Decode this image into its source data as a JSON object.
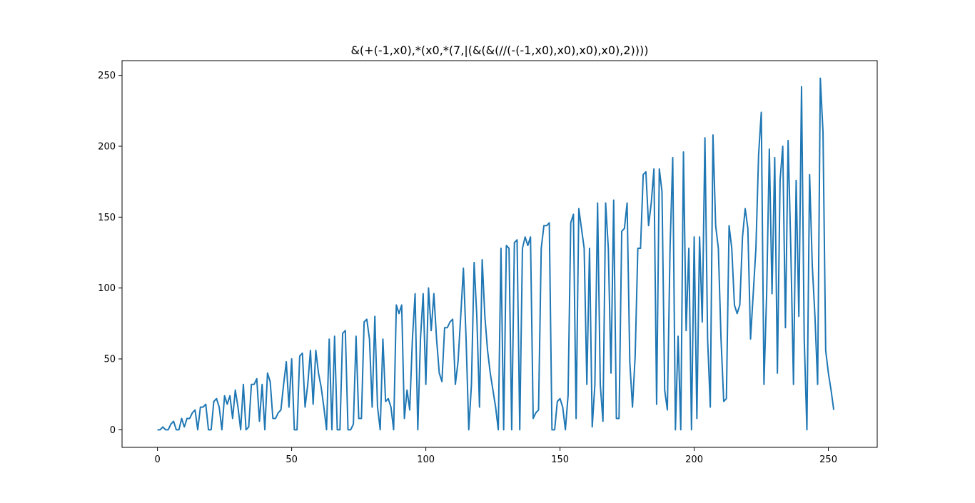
{
  "chart_data": {
    "type": "line",
    "title": "&(+(-1,x0),*(x0,*(7,|(&(&(//(-(-1,x0),x0),x0),x0),2))))",
    "xlabel": "",
    "ylabel": "",
    "xlim": [
      -13.2,
      268.2
    ],
    "ylim": [
      -12.4,
      260.4
    ],
    "xticks": [
      0,
      50,
      100,
      150,
      200,
      250
    ],
    "yticks": [
      0,
      50,
      100,
      150,
      200,
      250
    ],
    "grid": false,
    "line_color": "#1f77b4",
    "series": [
      {
        "x_start": 0,
        "values": [
          0,
          0,
          2,
          0,
          0,
          4,
          6,
          0,
          0,
          8,
          2,
          8,
          8,
          12,
          14,
          0,
          16,
          16,
          18,
          0,
          0,
          20,
          22,
          16,
          0,
          24,
          18,
          24,
          8,
          28,
          16,
          0,
          32,
          0,
          2,
          32,
          32,
          36,
          6,
          32,
          0,
          40,
          34,
          8,
          8,
          12,
          14,
          32,
          48,
          16,
          50,
          0,
          0,
          52,
          54,
          16,
          32,
          56,
          18,
          56,
          40,
          30,
          16,
          0,
          64,
          0,
          66,
          0,
          0,
          68,
          70,
          0,
          0,
          4,
          66,
          8,
          8,
          76,
          78,
          64,
          16,
          80,
          16,
          0,
          64,
          20,
          22,
          16,
          0,
          88,
          82,
          88,
          8,
          28,
          14,
          64,
          96,
          0,
          64,
          96,
          32,
          100,
          70,
          96,
          64,
          40,
          34,
          72,
          72,
          76,
          78,
          32,
          48,
          80,
          114,
          64,
          0,
          32,
          118,
          80,
          16,
          120,
          80,
          56,
          40,
          28,
          16,
          0,
          128,
          0,
          130,
          128,
          0,
          132,
          134,
          0,
          128,
          136,
          130,
          136,
          8,
          12,
          14,
          128,
          144,
          144,
          146,
          0,
          0,
          20,
          22,
          16,
          0,
          24,
          146,
          152,
          8,
          156,
          142,
          128,
          32,
          128,
          2,
          32,
          160,
          32,
          6,
          160,
          128,
          40,
          162,
          8,
          8,
          140,
          142,
          160,
          48,
          16,
          52,
          128,
          128,
          180,
          182,
          144,
          160,
          184,
          18,
          184,
          168,
          28,
          14,
          128,
          192,
          0,
          66,
          0,
          196,
          70,
          128,
          0,
          136,
          8,
          136,
          76,
          206,
          64,
          16,
          208,
          144,
          128,
          64,
          20,
          22,
          144,
          128,
          88,
          82,
          88,
          136,
          156,
          142,
          64,
          96,
          128,
          194,
          224,
          32,
          96,
          198,
          96,
          192,
          40,
          176,
          200,
          72,
          204,
          128,
          32,
          176,
          80,
          242,
          64,
          0,
          180,
          116,
          80,
          32,
          248,
          210,
          56,
          40,
          28,
          14
        ]
      }
    ]
  }
}
